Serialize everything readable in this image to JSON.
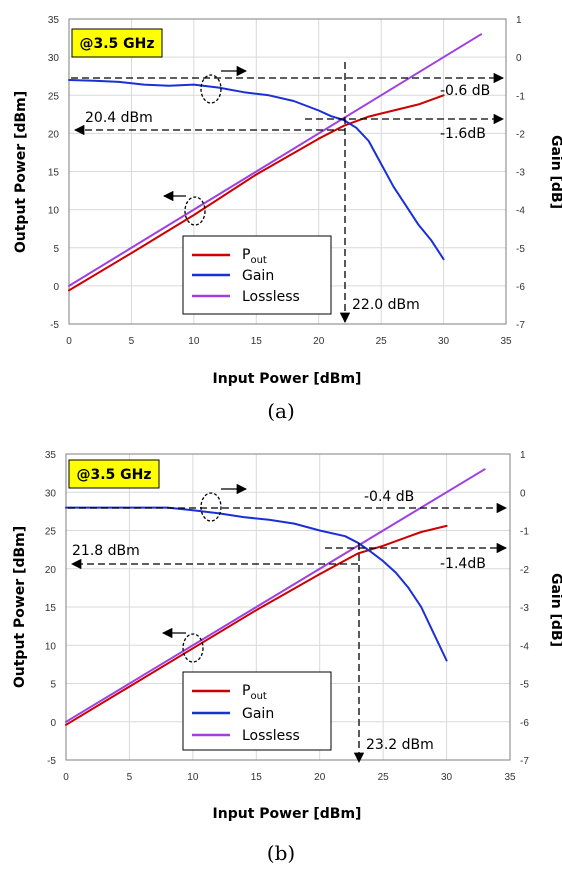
{
  "figure": {
    "captions": [
      "(a)",
      "(b)"
    ]
  },
  "chart_data": [
    {
      "type": "line",
      "panel": "(a)",
      "frequency_label": "@3.5 GHz",
      "xlabel": "Input Power [dBm]",
      "ylabel": "Output Power [dBm]",
      "y2label": "Gain [dB]",
      "xlim": [
        0,
        35
      ],
      "ylim": [
        -5,
        35
      ],
      "y2lim": [
        -7,
        1
      ],
      "x_ticks": [
        "0",
        "5",
        "10",
        "15",
        "20",
        "25",
        "30",
        "35"
      ],
      "y_ticks": [
        "-5",
        "0",
        "5",
        "10",
        "15",
        "20",
        "25",
        "30",
        "35"
      ],
      "y2_ticks": [
        "-7",
        "-6",
        "-5",
        "-4",
        "-3",
        "-2",
        "-1",
        "0",
        "1"
      ],
      "grid": true,
      "legend_placement": "bottom-center",
      "legend": [
        {
          "label": "P",
          "sub": "out",
          "color": "#cc0000"
        },
        {
          "label": "Gain",
          "color": "#1a2fd6"
        },
        {
          "label": "Lossless",
          "color": "#a040e0"
        }
      ],
      "series": [
        {
          "name": "Pout",
          "axis": "left",
          "color": "#cc0000",
          "x": [
            0,
            5,
            10,
            15,
            20,
            22,
            24,
            26,
            28,
            30
          ],
          "y": [
            -0.6,
            4.3,
            9.3,
            14.6,
            19.3,
            21.0,
            22.2,
            23.0,
            23.8,
            25.0
          ]
        },
        {
          "name": "Gain",
          "axis": "right",
          "color": "#1a2fd6",
          "x": [
            0,
            2,
            4,
            6,
            8,
            10,
            12,
            14,
            16,
            18,
            20,
            21,
            22,
            23,
            24,
            25,
            26,
            27,
            28,
            29,
            30
          ],
          "y": [
            -0.6,
            -0.62,
            -0.65,
            -0.72,
            -0.75,
            -0.72,
            -0.8,
            -0.92,
            -1.0,
            -1.15,
            -1.4,
            -1.55,
            -1.65,
            -1.85,
            -2.2,
            -2.8,
            -3.4,
            -3.9,
            -4.4,
            -4.8,
            -5.3
          ]
        },
        {
          "name": "Lossless",
          "axis": "left",
          "color": "#a040e0",
          "x": [
            0,
            33
          ],
          "y": [
            0,
            33
          ]
        }
      ],
      "annotations": [
        {
          "text": "-0.6 dB"
        },
        {
          "text": "-1.6dB"
        },
        {
          "text": "20.4 dBm"
        },
        {
          "text": "22.0 dBm"
        }
      ]
    },
    {
      "type": "line",
      "panel": "(b)",
      "frequency_label": "@3.5 GHz",
      "xlabel": "Input Power [dBm]",
      "ylabel": "Output Power [dBm]",
      "y2label": "Gain [dB]",
      "xlim": [
        0,
        35
      ],
      "ylim": [
        -5,
        35
      ],
      "y2lim": [
        -7,
        1
      ],
      "x_ticks": [
        "0",
        "5",
        "10",
        "15",
        "20",
        "25",
        "30",
        "35"
      ],
      "y_ticks": [
        "-5",
        "0",
        "5",
        "10",
        "15",
        "20",
        "25",
        "30",
        "35"
      ],
      "y2_ticks": [
        "-7",
        "-6",
        "-5",
        "-4",
        "-3",
        "-2",
        "-1",
        "0",
        "1"
      ],
      "grid": true,
      "legend_placement": "bottom-center",
      "legend": [
        {
          "label": "P",
          "sub": "out",
          "color": "#cc0000"
        },
        {
          "label": "Gain",
          "color": "#1a2fd6"
        },
        {
          "label": "Lossless",
          "color": "#a040e0"
        }
      ],
      "series": [
        {
          "name": "Pout",
          "axis": "left",
          "color": "#cc0000",
          "x": [
            0,
            5,
            10,
            15,
            20,
            23,
            25,
            27,
            28,
            30
          ],
          "y": [
            -0.4,
            4.6,
            9.6,
            14.6,
            19.3,
            22.0,
            23.0,
            24.2,
            24.8,
            25.6
          ]
        },
        {
          "name": "Gain",
          "axis": "right",
          "color": "#1a2fd6",
          "x": [
            0,
            4,
            8,
            10,
            12,
            14,
            16,
            18,
            20,
            22,
            23,
            24,
            25,
            26,
            27,
            28,
            29,
            30
          ],
          "y": [
            -0.4,
            -0.4,
            -0.4,
            -0.47,
            -0.55,
            -0.65,
            -0.72,
            -0.82,
            -1.0,
            -1.15,
            -1.32,
            -1.55,
            -1.8,
            -2.1,
            -2.5,
            -3.0,
            -3.7,
            -4.4
          ]
        },
        {
          "name": "Lossless",
          "axis": "left",
          "color": "#a040e0",
          "x": [
            0,
            33
          ],
          "y": [
            0,
            33
          ]
        }
      ],
      "annotations": [
        {
          "text": "-0.4 dB"
        },
        {
          "text": "-1.4dB"
        },
        {
          "text": "21.8 dBm"
        },
        {
          "text": "23.2 dBm"
        }
      ]
    }
  ]
}
